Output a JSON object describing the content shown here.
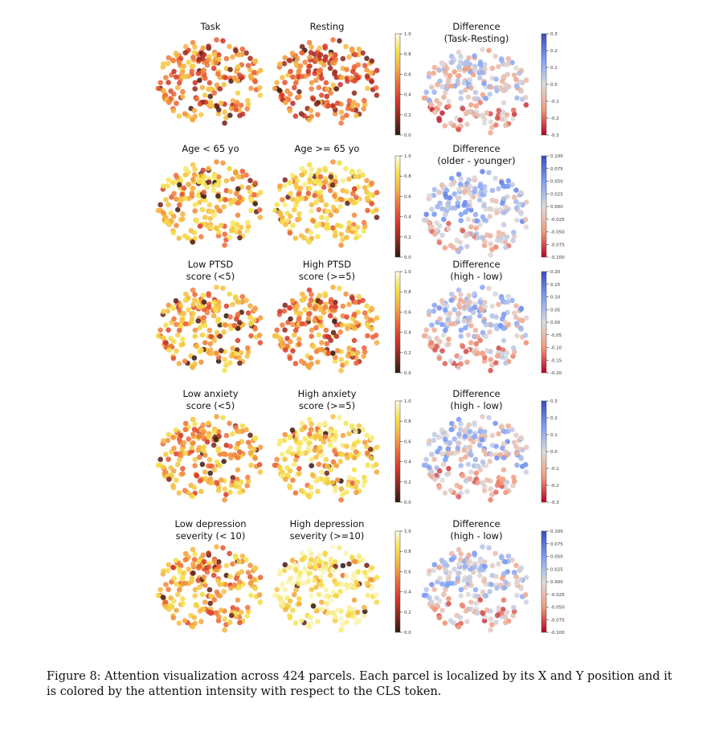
{
  "figure": {
    "rows": [
      {
        "panels": [
          {
            "title": [
              "Task"
            ],
            "kind": "attention",
            "bias": 0.45
          },
          {
            "title": [
              "Resting"
            ],
            "kind": "attention",
            "bias": 0.3
          },
          {
            "title": [
              "Difference",
              "(Task-Resting)"
            ],
            "kind": "difference",
            "bias": 0.55
          }
        ],
        "attention_colorbar": {
          "ticks": [
            "0.0",
            "0.2",
            "0.4",
            "0.6",
            "0.8",
            "1.0"
          ]
        },
        "difference_colorbar": {
          "ticks": [
            "0.3",
            "0.2",
            "0.1",
            "0.0",
            "-0.1",
            "-0.2",
            "-0.3"
          ]
        }
      },
      {
        "panels": [
          {
            "title": [
              "Age < 65 yo"
            ],
            "kind": "attention",
            "bias": 0.7
          },
          {
            "title": [
              "Age >= 65 yo"
            ],
            "kind": "attention",
            "bias": 0.75
          },
          {
            "title": [
              "Difference",
              "(older - younger)"
            ],
            "kind": "difference",
            "bias": 0.45
          }
        ],
        "attention_colorbar": {
          "ticks": [
            "0.0",
            "0.2",
            "0.4",
            "0.6",
            "0.8",
            "1.0"
          ]
        },
        "difference_colorbar": {
          "ticks": [
            "0.100",
            "0.075",
            "0.050",
            "0.025",
            "0.000",
            "-0.025",
            "-0.050",
            "-0.075",
            "-0.100"
          ]
        }
      },
      {
        "panels": [
          {
            "title": [
              "Low PTSD",
              "score (<5)"
            ],
            "kind": "attention",
            "bias": 0.62
          },
          {
            "title": [
              "High PTSD",
              "score (>=5)"
            ],
            "kind": "attention",
            "bias": 0.5
          },
          {
            "title": [
              "Difference",
              "(high - low)"
            ],
            "kind": "difference",
            "bias": 0.5
          }
        ],
        "attention_colorbar": {
          "ticks": [
            "0.0",
            "0.2",
            "0.4",
            "0.6",
            "0.8",
            "1.0"
          ]
        },
        "difference_colorbar": {
          "ticks": [
            "0.20",
            "0.15",
            "0.10",
            "0.05",
            "0.00",
            "-0.05",
            "-0.10",
            "-0.15",
            "-0.20"
          ]
        }
      },
      {
        "panels": [
          {
            "title": [
              "Low anxiety",
              "score (<5)"
            ],
            "kind": "attention",
            "bias": 0.6
          },
          {
            "title": [
              "High anxiety",
              "score (>=5)"
            ],
            "kind": "attention",
            "bias": 0.8
          },
          {
            "title": [
              "Difference",
              "(high - low)"
            ],
            "kind": "difference",
            "bias": 0.5
          }
        ],
        "attention_colorbar": {
          "ticks": [
            "0.0",
            "0.2",
            "0.4",
            "0.6",
            "0.8",
            "1.0"
          ]
        },
        "difference_colorbar": {
          "ticks": [
            "0.3",
            "0.2",
            "0.1",
            "0.0",
            "-0.1",
            "-0.2",
            "-0.3"
          ]
        }
      },
      {
        "panels": [
          {
            "title": [
              "Low depression",
              "severity (< 10)"
            ],
            "kind": "attention",
            "bias": 0.62
          },
          {
            "title": [
              "High depression",
              "severity (>=10)"
            ],
            "kind": "attention",
            "bias": 0.92
          },
          {
            "title": [
              "Difference",
              "(high - low)"
            ],
            "kind": "difference",
            "bias": 0.52
          }
        ],
        "attention_colorbar": {
          "ticks": [
            "0.0",
            "0.2",
            "0.4",
            "0.6",
            "0.8",
            "1.0"
          ]
        },
        "difference_colorbar": {
          "ticks": [
            "0.100",
            "0.075",
            "0.050",
            "0.025",
            "0.000",
            "-0.025",
            "-0.050",
            "-0.075",
            "-0.100"
          ]
        }
      }
    ]
  },
  "caption": "Figure 8: Attention visualization across 424 parcels. Each parcel is localized by its X and Y position and it is colored by the attention intensity with respect to the CLS token.",
  "colors": {
    "attention_scale": [
      "#2b1a14",
      "#8b2a1e",
      "#d6372a",
      "#ee6a3b",
      "#f6b341",
      "#f5e34a",
      "#fdfce8"
    ],
    "difference_scale": [
      "#3b4cc0",
      "#7b9ff9",
      "#dddcdc",
      "#f49a7b",
      "#b40426"
    ]
  }
}
